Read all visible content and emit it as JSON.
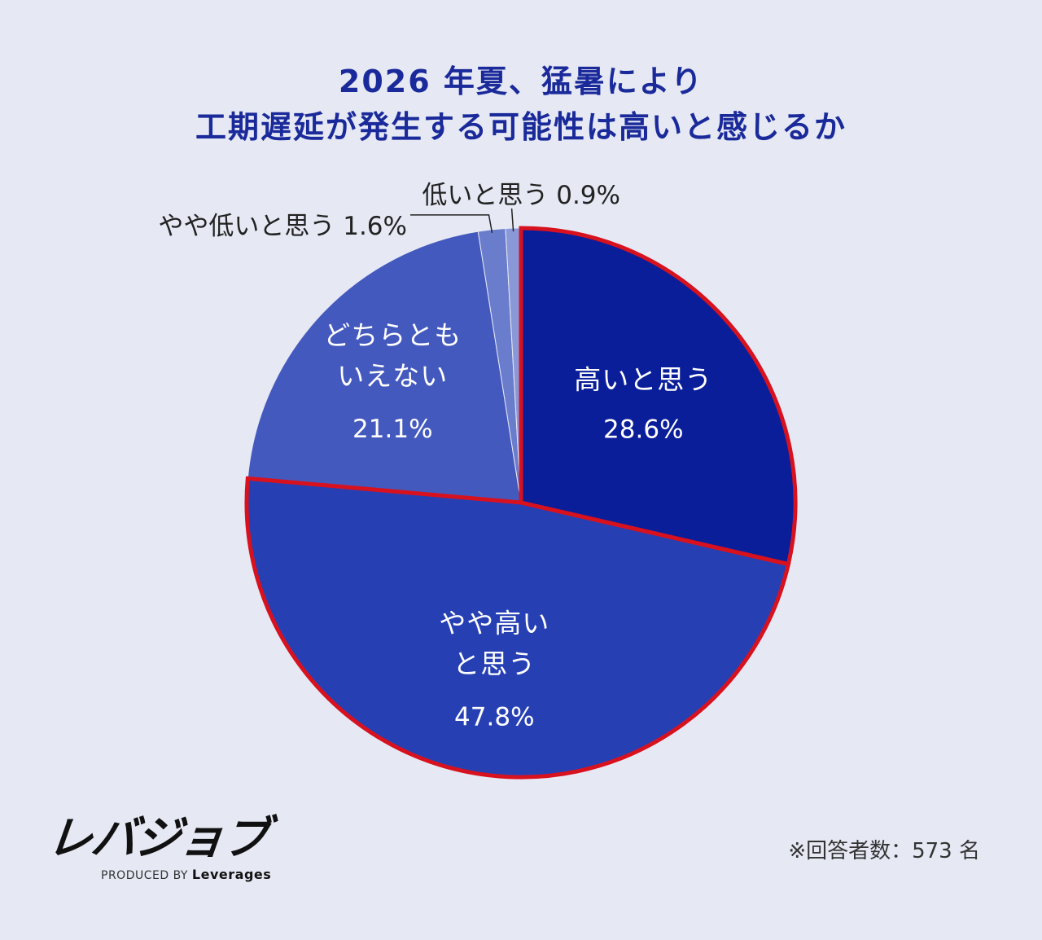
{
  "title": {
    "line1": "2026 年夏、猛暑により",
    "line2": "工期遅延が発生する可能性は高いと感じるか"
  },
  "chart_data": {
    "type": "pie",
    "title": "2026 年夏、猛暑により工期遅延が発生する可能性は高いと感じるか",
    "start": "12 o'clock, clockwise",
    "slices": [
      {
        "label": "高いと思う",
        "label_lines": [
          "高いと思う"
        ],
        "value": 28.6,
        "value_text": "28.6%",
        "color": "#0a1e9a",
        "highlight": true
      },
      {
        "label": "やや高いと思う",
        "label_lines": [
          "やや高い",
          "と思う"
        ],
        "value": 47.8,
        "value_text": "47.8%",
        "color": "#2640b4",
        "highlight": true
      },
      {
        "label": "どちらともいえない",
        "label_lines": [
          "どちらとも",
          "いえない"
        ],
        "value": 21.1,
        "value_text": "21.1%",
        "color": "#4459be",
        "highlight": false
      },
      {
        "label": "やや低いと思う",
        "label_lines": [
          "やや低いと思う"
        ],
        "value": 1.6,
        "value_text": "1.6%",
        "color": "#6a7ccc",
        "highlight": false
      },
      {
        "label": "低いと思う",
        "label_lines": [
          "低いと思う"
        ],
        "value": 0.9,
        "value_text": "0.9%",
        "color": "#8a98d8",
        "highlight": false
      }
    ],
    "highlight_color": "#d8111e"
  },
  "logo": {
    "main": "レバジョブ",
    "sub_prefix": "PRODUCED BY",
    "sub_brand": "Leverages"
  },
  "note": "※回答者数：573 名"
}
